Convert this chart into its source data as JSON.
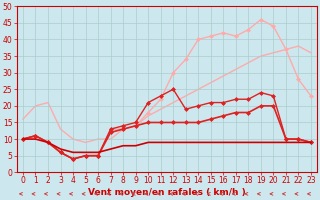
{
  "background_color": "#cce8ee",
  "grid_color": "#aacccc",
  "xlabel": "Vent moyen/en rafales ( km/h )",
  "xlabel_color": "#cc0000",
  "xlabel_fontsize": 6.5,
  "xtick_color": "#cc0000",
  "ytick_color": "#cc0000",
  "tick_fontsize": 5.5,
  "xlim": [
    -0.5,
    23.5
  ],
  "ylim": [
    0,
    50
  ],
  "yticks": [
    0,
    5,
    10,
    15,
    20,
    25,
    30,
    35,
    40,
    45,
    50
  ],
  "xticks": [
    0,
    1,
    2,
    3,
    4,
    5,
    6,
    7,
    8,
    9,
    10,
    11,
    12,
    13,
    14,
    15,
    16,
    17,
    18,
    19,
    20,
    21,
    22,
    23
  ],
  "arrow_color": "#cc4444",
  "lines": [
    {
      "x": [
        0,
        1,
        2,
        3,
        4,
        5,
        6,
        7,
        8,
        9,
        10,
        11,
        12,
        13,
        14,
        15,
        16,
        17,
        18,
        19,
        20,
        21,
        22,
        23
      ],
      "y": [
        16,
        20,
        21,
        13,
        10,
        9,
        10,
        10,
        13,
        14,
        17,
        19,
        21,
        23,
        25,
        27,
        29,
        31,
        33,
        35,
        36,
        37,
        38,
        36
      ],
      "color": "#ffaaaa",
      "linewidth": 1.0,
      "marker": null,
      "zorder": 1
    },
    {
      "x": [
        0,
        1,
        2,
        3,
        4,
        5,
        6,
        7,
        8,
        9,
        10,
        11,
        12,
        13,
        14,
        15,
        16,
        17,
        18,
        19,
        20,
        21,
        22,
        23
      ],
      "y": [
        10,
        11,
        9,
        6,
        4,
        5,
        5,
        13,
        13,
        14,
        18,
        22,
        30,
        34,
        40,
        41,
        42,
        41,
        43,
        46,
        44,
        37,
        28,
        23
      ],
      "color": "#ffaaaa",
      "linewidth": 1.0,
      "marker": "D",
      "markersize": 2,
      "zorder": 2
    },
    {
      "x": [
        0,
        1,
        2,
        3,
        4,
        5,
        6,
        7,
        8,
        9,
        10,
        11,
        12,
        13,
        14,
        15,
        16,
        17,
        18,
        19,
        20,
        21,
        22,
        23
      ],
      "y": [
        10,
        11,
        9,
        6,
        4,
        5,
        5,
        13,
        14,
        15,
        21,
        23,
        25,
        19,
        20,
        21,
        21,
        22,
        22,
        24,
        23,
        10,
        10,
        9
      ],
      "color": "#dd2222",
      "linewidth": 1.0,
      "marker": "D",
      "markersize": 2,
      "zorder": 3
    },
    {
      "x": [
        0,
        1,
        2,
        3,
        4,
        5,
        6,
        7,
        8,
        9,
        10,
        11,
        12,
        13,
        14,
        15,
        16,
        17,
        18,
        19,
        20,
        21,
        22,
        23
      ],
      "y": [
        10,
        11,
        9,
        6,
        4,
        5,
        5,
        12,
        13,
        14,
        15,
        15,
        15,
        15,
        15,
        16,
        17,
        18,
        18,
        20,
        20,
        10,
        10,
        9
      ],
      "color": "#dd2222",
      "linewidth": 1.2,
      "marker": "D",
      "markersize": 2,
      "zorder": 4
    },
    {
      "x": [
        0,
        1,
        2,
        3,
        4,
        5,
        6,
        7,
        8,
        9,
        10,
        11,
        12,
        13,
        14,
        15,
        16,
        17,
        18,
        19,
        20,
        21,
        22,
        23
      ],
      "y": [
        10,
        10,
        9,
        7,
        6,
        6,
        6,
        7,
        8,
        8,
        9,
        9,
        9,
        9,
        9,
        9,
        9,
        9,
        9,
        9,
        9,
        9,
        9,
        9
      ],
      "color": "#cc0000",
      "linewidth": 1.2,
      "marker": null,
      "zorder": 5
    }
  ]
}
